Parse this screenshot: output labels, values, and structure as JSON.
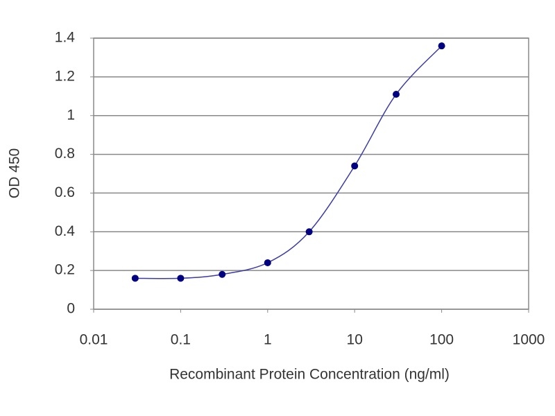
{
  "chart_data": {
    "type": "scatter",
    "x_label": "Recombinant Protein Concentration (ng/ml)",
    "y_label": "OD 450",
    "x": [
      0.03,
      0.1,
      0.3,
      1,
      3,
      10,
      30,
      100
    ],
    "series": [
      {
        "color": "#000080",
        "line_color": "#3a3aa8",
        "values": [
          0.16,
          0.16,
          0.18,
          0.24,
          0.4,
          0.74,
          1.11,
          1.36
        ]
      }
    ],
    "xlim": [
      0.01,
      1000
    ],
    "xticks": [
      0.01,
      0.1,
      1,
      10,
      100,
      1000
    ],
    "xscale": "log",
    "ylim": [
      0,
      1.4
    ],
    "yticks": [
      0,
      0.2,
      0.4,
      0.6,
      0.8,
      1,
      1.2,
      1.4
    ],
    "grid": true,
    "curve": "smooth"
  }
}
